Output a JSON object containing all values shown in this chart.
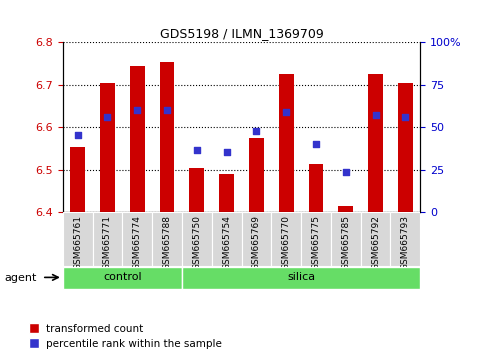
{
  "title": "GDS5198 / ILMN_1369709",
  "samples": [
    "GSM665761",
    "GSM665771",
    "GSM665774",
    "GSM665788",
    "GSM665750",
    "GSM665754",
    "GSM665769",
    "GSM665770",
    "GSM665775",
    "GSM665785",
    "GSM665792",
    "GSM665793"
  ],
  "groups": [
    "control",
    "control",
    "control",
    "control",
    "silica",
    "silica",
    "silica",
    "silica",
    "silica",
    "silica",
    "silica",
    "silica"
  ],
  "transformed_count": [
    6.555,
    6.705,
    6.745,
    6.755,
    6.505,
    6.49,
    6.575,
    6.725,
    6.515,
    6.415,
    6.725,
    6.705
  ],
  "percentile_rank_val": [
    6.582,
    6.625,
    6.64,
    6.64,
    6.547,
    6.542,
    6.592,
    6.636,
    6.56,
    6.494,
    6.63,
    6.625
  ],
  "ylim": [
    6.4,
    6.8
  ],
  "yticks": [
    6.4,
    6.5,
    6.6,
    6.7,
    6.8
  ],
  "y2ticks": [
    0,
    25,
    50,
    75,
    100
  ],
  "bar_color": "#cc0000",
  "dot_color": "#3333cc",
  "green_color": "#66dd66",
  "tick_color_left": "#cc0000",
  "tick_color_right": "#0000cc",
  "bar_width": 0.5,
  "figsize": [
    4.83,
    3.54
  ],
  "dpi": 100
}
